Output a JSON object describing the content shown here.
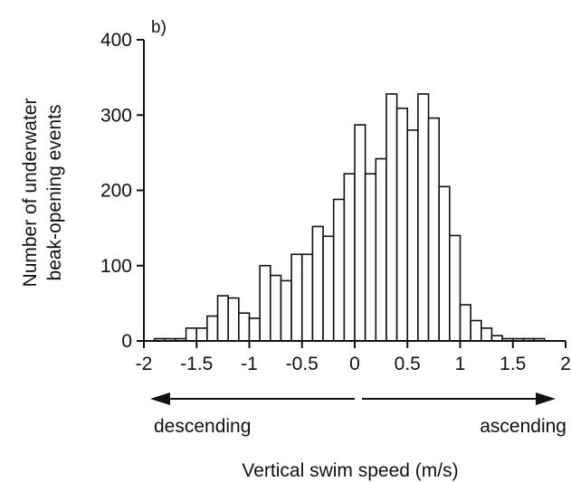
{
  "chart_data": {
    "type": "bar",
    "panel_label": "b)",
    "xlabel": "Vertical swim speed (m/s)",
    "ylabel_lines": [
      "Number of underwater",
      "beak-opening events"
    ],
    "xlim": [
      -2,
      2
    ],
    "ylim": [
      0,
      400
    ],
    "xticks": [
      -2,
      -1.5,
      -1,
      -0.5,
      0,
      0.5,
      1,
      1.5,
      2
    ],
    "xtick_labels": [
      "-2",
      "-1.5",
      "-1",
      "-0.5",
      "0",
      "0.5",
      "1",
      "1.5",
      "2"
    ],
    "yticks": [
      0,
      100,
      200,
      300,
      400
    ],
    "ytick_labels": [
      "0",
      "100",
      "200",
      "300",
      "400"
    ],
    "bin_width": 0.1,
    "bin_starts": [
      -1.9,
      -1.8,
      -1.7,
      -1.6,
      -1.5,
      -1.4,
      -1.3,
      -1.2,
      -1.1,
      -1.0,
      -0.9,
      -0.8,
      -0.7,
      -0.6,
      -0.5,
      -0.4,
      -0.3,
      -0.2,
      -0.1,
      0.0,
      0.1,
      0.2,
      0.3,
      0.4,
      0.5,
      0.6,
      0.7,
      0.8,
      0.9,
      1.0,
      1.1,
      1.2,
      1.3,
      1.4,
      1.5,
      1.6,
      1.7
    ],
    "values": [
      3,
      3,
      3,
      17,
      17,
      33,
      60,
      57,
      37,
      30,
      100,
      87,
      80,
      115,
      115,
      152,
      139,
      188,
      222,
      287,
      222,
      242,
      328,
      309,
      280,
      328,
      296,
      205,
      140,
      48,
      27,
      17,
      7,
      3,
      3,
      3,
      3
    ],
    "grid": false,
    "annotations": {
      "left_arrow_label": "descending",
      "right_arrow_label": "ascending"
    }
  }
}
